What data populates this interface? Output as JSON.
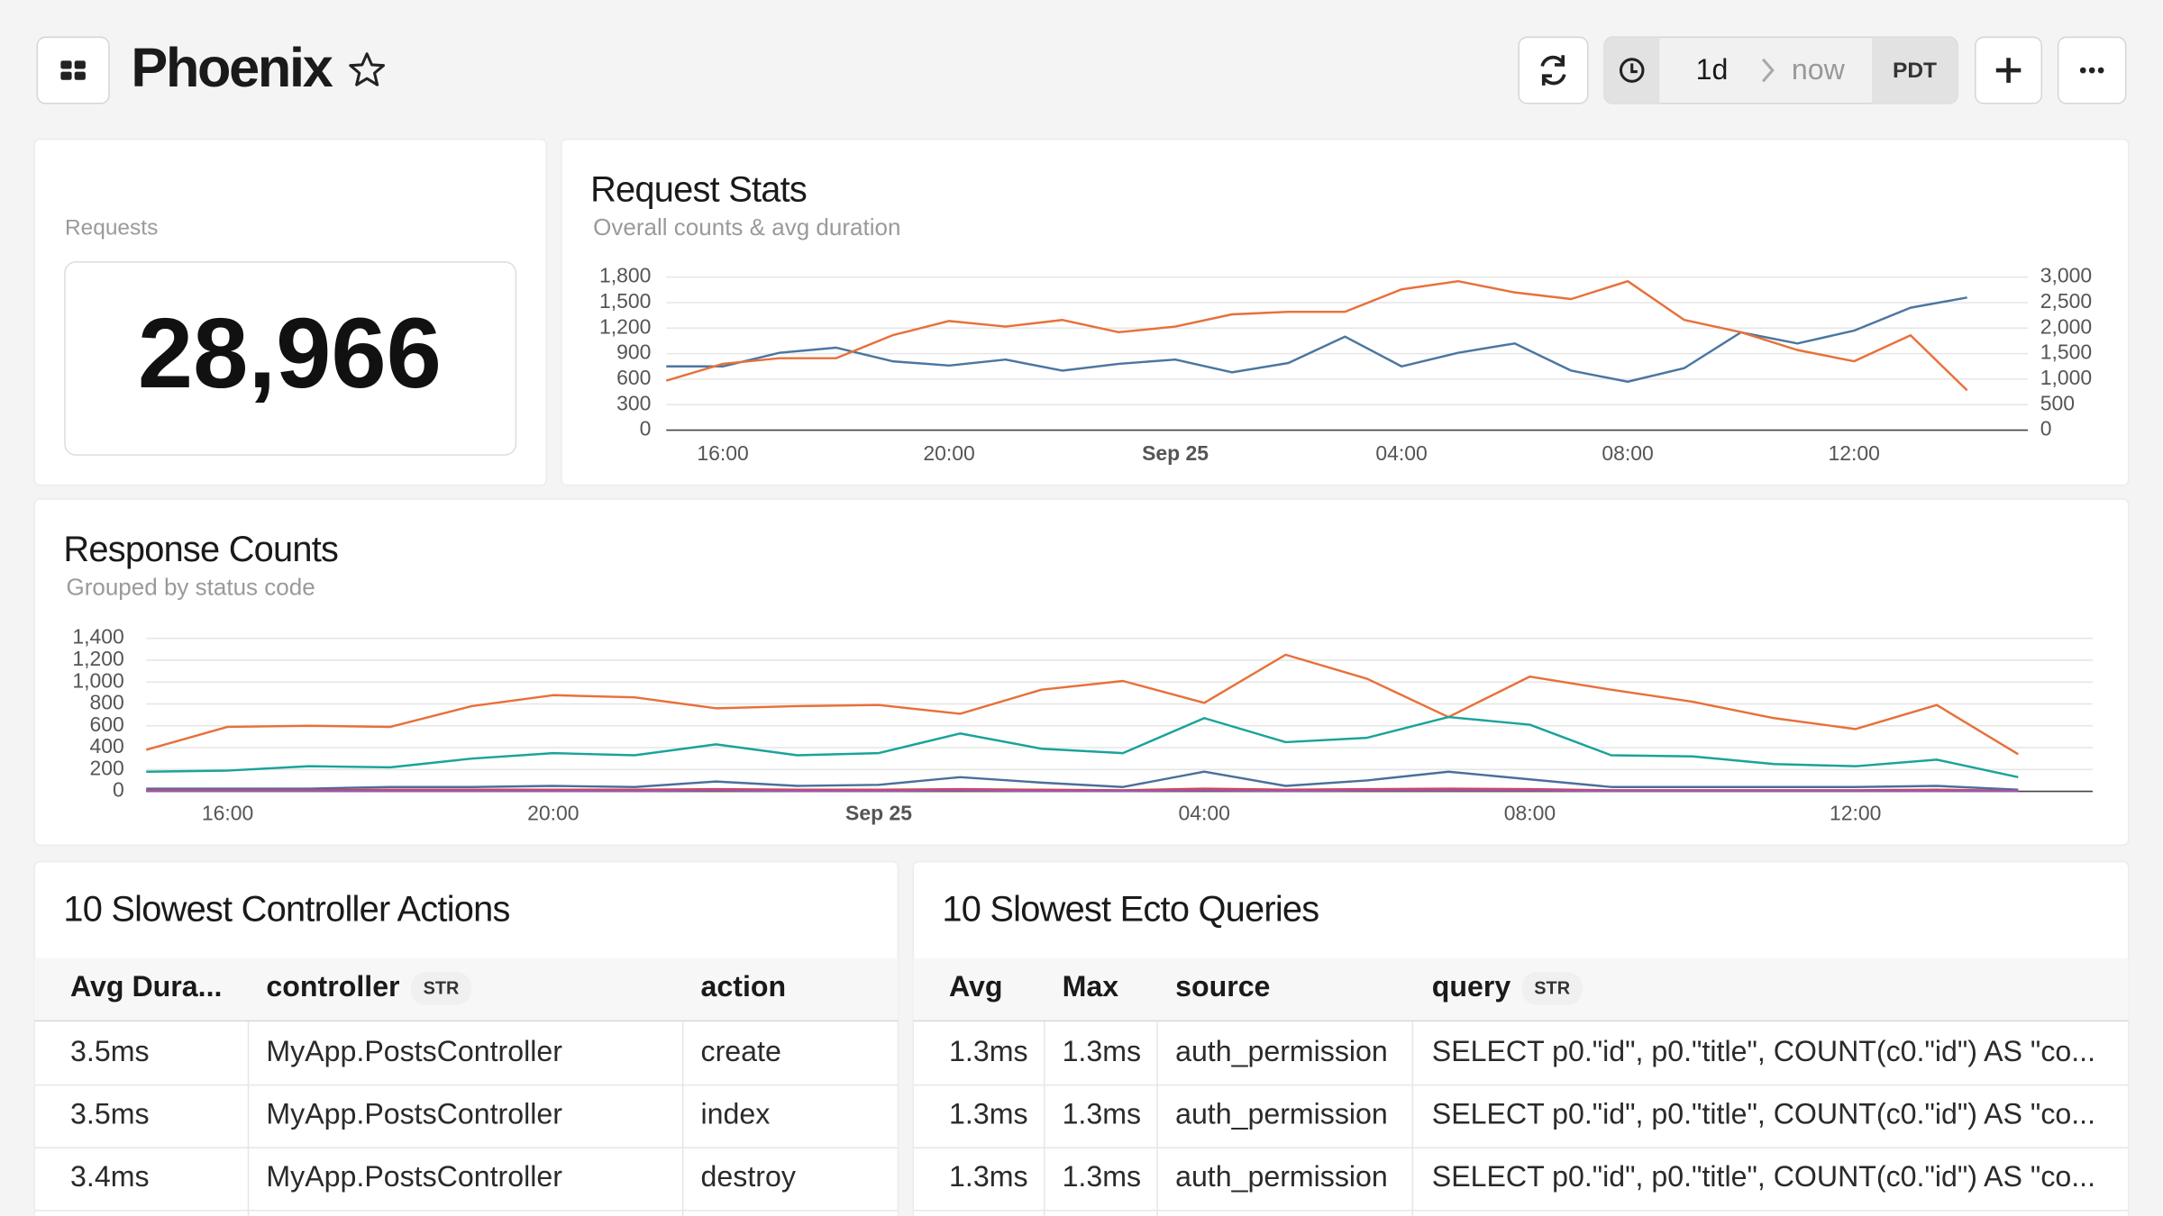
{
  "header": {
    "title": "Phoenix",
    "time_range": {
      "from": "1d",
      "to": "now",
      "timezone": "PDT"
    }
  },
  "stat_card": {
    "label": "Requests",
    "value": "28,966"
  },
  "chart_data": [
    {
      "type": "line",
      "title": "Request Stats",
      "subtitle": "Overall counts & avg duration",
      "categories": [
        null,
        "16:00",
        null,
        null,
        null,
        "20:00",
        null,
        null,
        null,
        "Sep 25",
        null,
        null,
        null,
        "04:00",
        null,
        null,
        null,
        "08:00",
        null,
        null,
        null,
        "12:00",
        null,
        null
      ],
      "series": [
        {
          "color": "#4a76a0",
          "values": [
            750,
            750,
            910,
            970,
            810,
            760,
            830,
            700,
            780,
            830,
            680,
            790,
            1100,
            750,
            910,
            1020,
            700,
            570,
            730,
            1150,
            1020,
            1170,
            1440,
            1560
          ]
        },
        {
          "color": "#e8703a",
          "axis": "y2",
          "values": [
            970,
            1300,
            1410,
            1410,
            1860,
            2140,
            2030,
            2160,
            1920,
            2030,
            2270,
            2320,
            2320,
            2760,
            2920,
            2700,
            2570,
            2920,
            2160,
            1920,
            1570,
            1350,
            1860,
            780
          ]
        }
      ],
      "ylim": [
        0,
        1800
      ],
      "yticks": [
        0,
        300,
        600,
        900,
        {
          "value": 1200,
          "label": "1,200"
        },
        {
          "value": 1500,
          "label": "1,500"
        },
        {
          "value": 1800,
          "label": "1,800"
        }
      ],
      "y2lim": [
        0,
        3000
      ],
      "y2ticks": [
        0,
        500,
        {
          "value": 1000,
          "label": "1,000"
        },
        {
          "value": 1500,
          "label": "1,500"
        },
        {
          "value": 2000,
          "label": "2,000"
        },
        {
          "value": 2500,
          "label": "2,500"
        },
        {
          "value": 3000,
          "label": "3,000"
        }
      ],
      "grid": true
    },
    {
      "type": "line",
      "title": "Response Counts",
      "subtitle": "Grouped by status code",
      "categories": [
        null,
        "16:00",
        null,
        null,
        null,
        "20:00",
        null,
        null,
        null,
        "Sep 25",
        null,
        null,
        null,
        "04:00",
        null,
        null,
        null,
        "08:00",
        null,
        null,
        null,
        "12:00",
        null,
        null
      ],
      "series": [
        {
          "color": "#e8703a",
          "values": [
            380,
            590,
            600,
            590,
            780,
            880,
            860,
            760,
            780,
            790,
            710,
            930,
            1010,
            810,
            1250,
            1030,
            680,
            1050,
            930,
            820,
            670,
            570,
            790,
            340
          ]
        },
        {
          "color": "#1aa39a",
          "values": [
            180,
            190,
            230,
            220,
            300,
            350,
            330,
            430,
            330,
            350,
            530,
            390,
            350,
            670,
            450,
            490,
            680,
            610,
            330,
            320,
            250,
            230,
            290,
            130
          ]
        },
        {
          "color": "#4a6f9a",
          "values": [
            25,
            25,
            25,
            40,
            40,
            50,
            40,
            90,
            50,
            60,
            130,
            80,
            40,
            180,
            50,
            100,
            180,
            110,
            40,
            40,
            40,
            40,
            50,
            15
          ]
        },
        {
          "color": "#d9424a",
          "values": [
            10,
            10,
            10,
            15,
            15,
            15,
            15,
            20,
            15,
            15,
            20,
            15,
            10,
            25,
            15,
            20,
            25,
            20,
            10,
            10,
            10,
            10,
            15,
            5
          ]
        },
        {
          "color": "#a056a8",
          "values": [
            5,
            5,
            5,
            5,
            5,
            5,
            5,
            10,
            5,
            5,
            10,
            5,
            5,
            10,
            5,
            10,
            10,
            10,
            5,
            5,
            5,
            5,
            5,
            5
          ]
        }
      ],
      "ylim": [
        0,
        1400
      ],
      "yticks": [
        0,
        200,
        400,
        600,
        800,
        {
          "value": 1000,
          "label": "1,000"
        },
        {
          "value": 1200,
          "label": "1,200"
        },
        {
          "value": 1400,
          "label": "1,400"
        }
      ],
      "grid": true
    }
  ],
  "tables": [
    {
      "title": "10 Slowest Controller Actions",
      "columns": [
        {
          "label": "Avg Dura..."
        },
        {
          "label": "controller",
          "type": "STR"
        },
        {
          "label": "action"
        }
      ],
      "rows": [
        [
          "3.5ms",
          "MyApp.PostsController",
          "create"
        ],
        [
          "3.5ms",
          "MyApp.PostsController",
          "index"
        ],
        [
          "3.4ms",
          "MyApp.PostsController",
          "destroy"
        ]
      ]
    },
    {
      "title": "10 Slowest Ecto Queries",
      "columns": [
        {
          "label": "Avg"
        },
        {
          "label": "Max"
        },
        {
          "label": "source"
        },
        {
          "label": "query",
          "type": "STR"
        }
      ],
      "rows": [
        [
          "1.3ms",
          "1.3ms",
          "auth_permission",
          "SELECT p0.\"id\", p0.\"title\", COUNT(c0.\"id\") AS \"co..."
        ],
        [
          "1.3ms",
          "1.3ms",
          "auth_permission",
          "SELECT p0.\"id\", p0.\"title\", COUNT(c0.\"id\") AS \"co..."
        ],
        [
          "1.3ms",
          "1.3ms",
          "auth_permission",
          "SELECT p0.\"id\", p0.\"title\", COUNT(c0.\"id\") AS \"co..."
        ]
      ]
    }
  ]
}
